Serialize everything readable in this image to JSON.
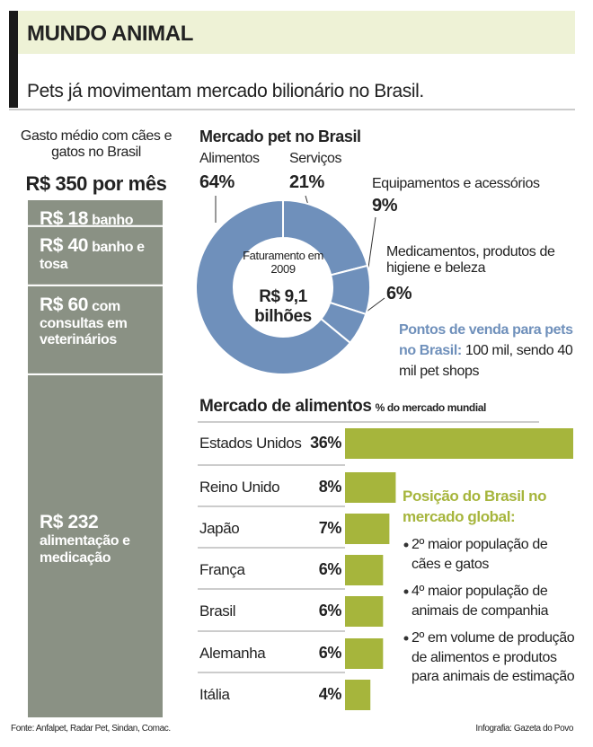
{
  "header": {
    "title": "MUNDO ANIMAL",
    "subtitle": "Pets já movimentam mercado bilionário no Brasil."
  },
  "chart_data": [
    {
      "type": "stacked-bar",
      "title": "Gasto médio com cães e gatos no Brasil",
      "subtitle": "R$ 350 por mês",
      "ylim": [
        0,
        350
      ],
      "series": [
        {
          "name": "alimentação e medicação",
          "color": "#8a9184",
          "values": [
            232
          ],
          "value_labels": [
            "R$ 232"
          ]
        },
        {
          "name": "com consultas em veterinários",
          "color": "#8a9184",
          "values": [
            60
          ],
          "value_labels": [
            "R$ 60"
          ]
        },
        {
          "name": "banho e tosa",
          "color": "#8a9184",
          "values": [
            40
          ],
          "value_labels": [
            "R$ 40"
          ]
        },
        {
          "name": "banho",
          "color": "#8a9184",
          "values": [
            18
          ],
          "value_labels": [
            "R$ 18"
          ]
        }
      ]
    },
    {
      "type": "donut",
      "title": "Mercado pet no Brasil",
      "center_label": "Faturamento em 2009",
      "center_value": "R$ 9,1 bilhões",
      "color": "#6f90bb",
      "categories": [
        "Alimentos",
        "Serviços",
        "Equipamentos e acessórios",
        "Medicamentos, produtos de higiene e beleza"
      ],
      "values": [
        64,
        21,
        9,
        6
      ],
      "value_labels": [
        "64%",
        "21%",
        "9%",
        "6%"
      ]
    },
    {
      "type": "hbar",
      "title": "Mercado de alimentos",
      "subtitle": "% do mercado mundial",
      "color": "#a6b53c",
      "xlim": [
        0,
        36
      ],
      "categories": [
        "Estados Unidos",
        "Reino Unido",
        "Japão",
        "França",
        "Brasil",
        "Alemanha",
        "Itália"
      ],
      "values": [
        36,
        8,
        7,
        6,
        6,
        6,
        4
      ],
      "value_labels": [
        "36%",
        "8%",
        "7%",
        "6%",
        "6%",
        "6%",
        "4%"
      ]
    }
  ],
  "note": {
    "title": "Pontos de venda para pets no Brasil:",
    "text": "100 mil, sendo 40 mil pet shops"
  },
  "brasil": {
    "title": "Posição do Brasil no mercado global:",
    "items": [
      "2º maior população de cães e gatos",
      "4º maior população de animais de companhia",
      "2º em volume de produção de alimentos e produtos para animais de estimação"
    ]
  },
  "footer": {
    "source": "Fonte: Anfalpet, Radar Pet, Sindan, Comac.",
    "credit": "Infografia: Gazeta do Povo"
  }
}
